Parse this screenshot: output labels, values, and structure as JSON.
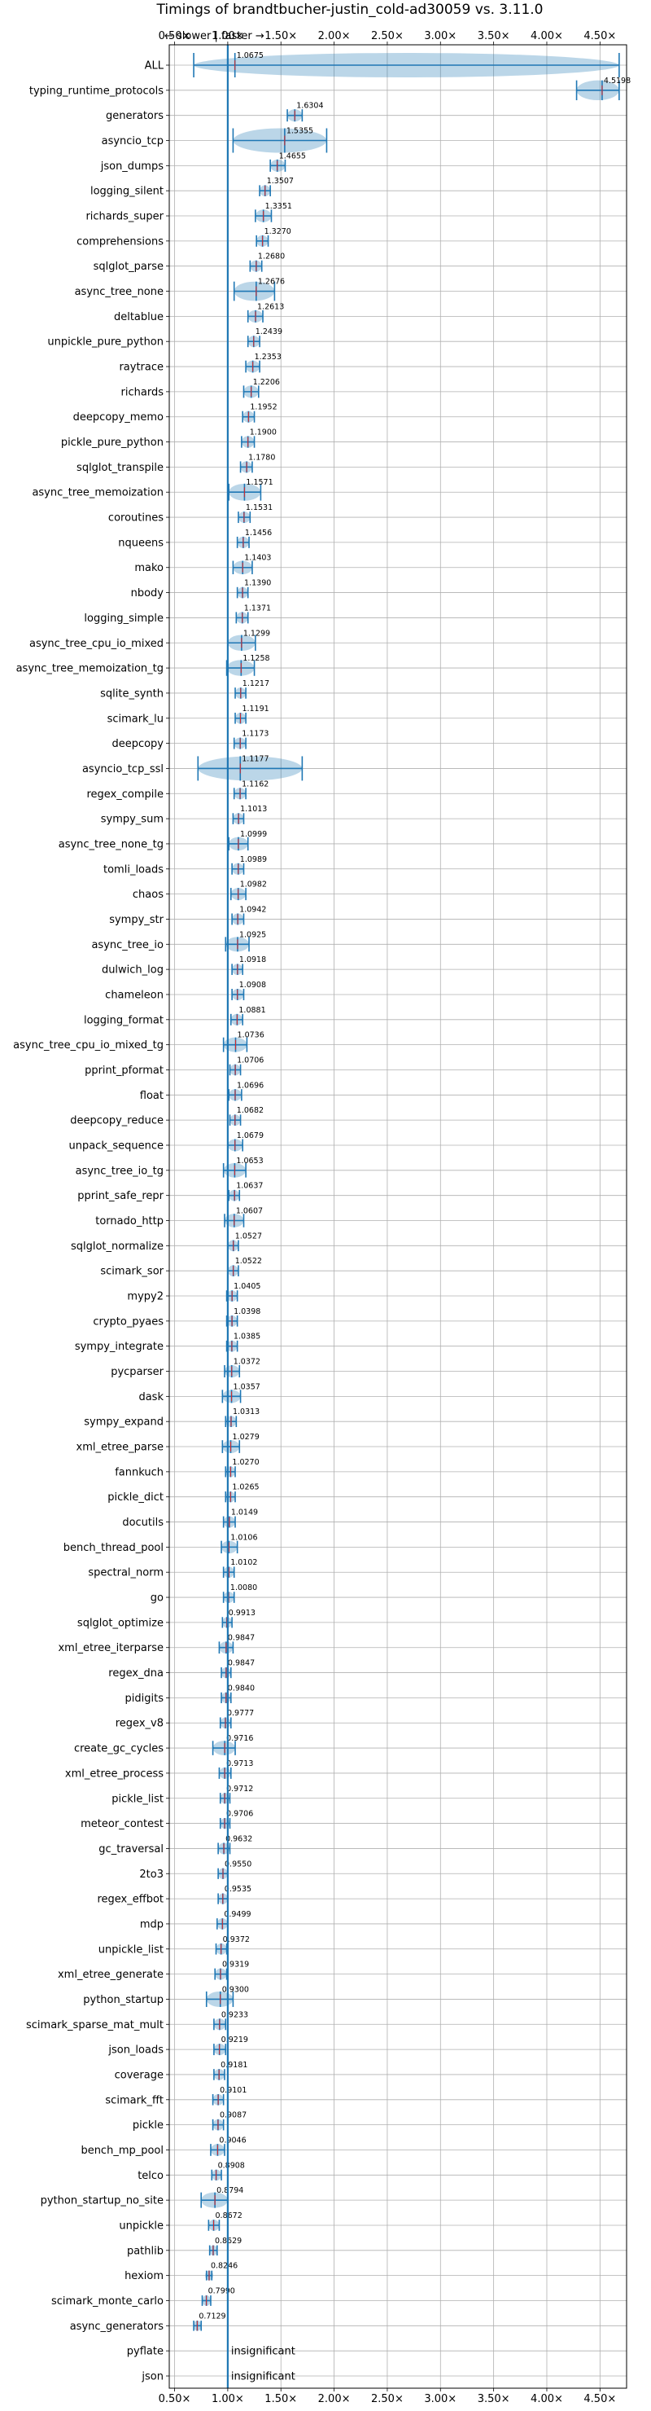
{
  "chart_data": {
    "type": "violin",
    "title": "Timings of brandtbucher-justin_cold-ad30059 vs. 3.11.0",
    "direction_note": "← slower | faster →",
    "xlim": [
      0.45,
      4.75
    ],
    "reference_line": 1.0,
    "x_ticks": [
      0.5,
      1.0,
      1.5,
      2.0,
      2.5,
      3.0,
      3.5,
      4.0,
      4.5
    ],
    "x_tick_labels": [
      "0.50×",
      "1.00×",
      "1.50×",
      "2.00×",
      "2.50×",
      "3.00×",
      "3.50×",
      "4.00×",
      "4.50×"
    ],
    "grid": true,
    "accent_color": "#1f77b4",
    "benchmarks": [
      {
        "name": "ALL",
        "value": 1.0675,
        "label": "1.0675",
        "low": 0.68,
        "high": 4.68
      },
      {
        "name": "typing_runtime_protocols",
        "value": 4.5198,
        "label": "4.5198",
        "low": 4.28,
        "high": 4.68
      },
      {
        "name": "generators",
        "value": 1.6304,
        "label": "1.6304",
        "low": 1.56,
        "high": 1.7
      },
      {
        "name": "asyncio_tcp",
        "value": 1.5355,
        "label": "1.5355",
        "low": 1.05,
        "high": 1.93
      },
      {
        "name": "json_dumps",
        "value": 1.4655,
        "label": "1.4655",
        "low": 1.4,
        "high": 1.54
      },
      {
        "name": "logging_silent",
        "value": 1.3507,
        "label": "1.3507",
        "low": 1.3,
        "high": 1.4
      },
      {
        "name": "richards_super",
        "value": 1.3351,
        "label": "1.3351",
        "low": 1.26,
        "high": 1.41
      },
      {
        "name": "comprehensions",
        "value": 1.327,
        "label": "1.3270",
        "low": 1.27,
        "high": 1.38
      },
      {
        "name": "sqlglot_parse",
        "value": 1.268,
        "label": "1.2680",
        "low": 1.21,
        "high": 1.32
      },
      {
        "name": "async_tree_none",
        "value": 1.2676,
        "label": "1.2676",
        "low": 1.06,
        "high": 1.44
      },
      {
        "name": "deltablue",
        "value": 1.2613,
        "label": "1.2613",
        "low": 1.19,
        "high": 1.33
      },
      {
        "name": "unpickle_pure_python",
        "value": 1.2439,
        "label": "1.2439",
        "low": 1.19,
        "high": 1.3
      },
      {
        "name": "raytrace",
        "value": 1.2353,
        "label": "1.2353",
        "low": 1.17,
        "high": 1.3
      },
      {
        "name": "richards",
        "value": 1.2206,
        "label": "1.2206",
        "low": 1.15,
        "high": 1.29
      },
      {
        "name": "deepcopy_memo",
        "value": 1.1952,
        "label": "1.1952",
        "low": 1.14,
        "high": 1.25
      },
      {
        "name": "pickle_pure_python",
        "value": 1.19,
        "label": "1.1900",
        "low": 1.13,
        "high": 1.25
      },
      {
        "name": "sqlglot_transpile",
        "value": 1.178,
        "label": "1.1780",
        "low": 1.12,
        "high": 1.23
      },
      {
        "name": "async_tree_memoization",
        "value": 1.1571,
        "label": "1.1571",
        "low": 1.01,
        "high": 1.31
      },
      {
        "name": "coroutines",
        "value": 1.1531,
        "label": "1.1531",
        "low": 1.1,
        "high": 1.21
      },
      {
        "name": "nqueens",
        "value": 1.1456,
        "label": "1.1456",
        "low": 1.09,
        "high": 1.2
      },
      {
        "name": "mako",
        "value": 1.1403,
        "label": "1.1403",
        "low": 1.05,
        "high": 1.23
      },
      {
        "name": "nbody",
        "value": 1.139,
        "label": "1.1390",
        "low": 1.09,
        "high": 1.19
      },
      {
        "name": "logging_simple",
        "value": 1.1371,
        "label": "1.1371",
        "low": 1.08,
        "high": 1.19
      },
      {
        "name": "async_tree_cpu_io_mixed",
        "value": 1.1299,
        "label": "1.1299",
        "low": 1.0,
        "high": 1.26
      },
      {
        "name": "async_tree_memoization_tg",
        "value": 1.1258,
        "label": "1.1258",
        "low": 0.99,
        "high": 1.25
      },
      {
        "name": "sqlite_synth",
        "value": 1.1217,
        "label": "1.1217",
        "low": 1.07,
        "high": 1.17
      },
      {
        "name": "scimark_lu",
        "value": 1.1191,
        "label": "1.1191",
        "low": 1.07,
        "high": 1.17
      },
      {
        "name": "deepcopy",
        "value": 1.1173,
        "label": "1.1173",
        "low": 1.06,
        "high": 1.17
      },
      {
        "name": "asyncio_tcp_ssl",
        "value": 1.1177,
        "label": "1.1177",
        "low": 0.72,
        "high": 1.7
      },
      {
        "name": "regex_compile",
        "value": 1.1162,
        "label": "1.1162",
        "low": 1.06,
        "high": 1.17
      },
      {
        "name": "sympy_sum",
        "value": 1.1013,
        "label": "1.1013",
        "low": 1.05,
        "high": 1.15
      },
      {
        "name": "async_tree_none_tg",
        "value": 1.0999,
        "label": "1.0999",
        "low": 1.01,
        "high": 1.19
      },
      {
        "name": "tomli_loads",
        "value": 1.0989,
        "label": "1.0989",
        "low": 1.04,
        "high": 1.15
      },
      {
        "name": "chaos",
        "value": 1.0982,
        "label": "1.0982",
        "low": 1.03,
        "high": 1.17
      },
      {
        "name": "sympy_str",
        "value": 1.0942,
        "label": "1.0942",
        "low": 1.04,
        "high": 1.15
      },
      {
        "name": "async_tree_io",
        "value": 1.0925,
        "label": "1.0925",
        "low": 0.98,
        "high": 1.2
      },
      {
        "name": "dulwich_log",
        "value": 1.0918,
        "label": "1.0918",
        "low": 1.04,
        "high": 1.14
      },
      {
        "name": "chameleon",
        "value": 1.0908,
        "label": "1.0908",
        "low": 1.04,
        "high": 1.15
      },
      {
        "name": "logging_format",
        "value": 1.0881,
        "label": "1.0881",
        "low": 1.03,
        "high": 1.14
      },
      {
        "name": "async_tree_cpu_io_mixed_tg",
        "value": 1.0736,
        "label": "1.0736",
        "low": 0.96,
        "high": 1.18
      },
      {
        "name": "pprint_pformat",
        "value": 1.0706,
        "label": "1.0706",
        "low": 1.02,
        "high": 1.12
      },
      {
        "name": "float",
        "value": 1.0696,
        "label": "1.0696",
        "low": 1.01,
        "high": 1.13
      },
      {
        "name": "deepcopy_reduce",
        "value": 1.0682,
        "label": "1.0682",
        "low": 1.02,
        "high": 1.12
      },
      {
        "name": "unpack_sequence",
        "value": 1.0679,
        "label": "1.0679",
        "low": 1.0,
        "high": 1.14
      },
      {
        "name": "async_tree_io_tg",
        "value": 1.0653,
        "label": "1.0653",
        "low": 0.96,
        "high": 1.17
      },
      {
        "name": "pprint_safe_repr",
        "value": 1.0637,
        "label": "1.0637",
        "low": 1.01,
        "high": 1.11
      },
      {
        "name": "tornado_http",
        "value": 1.0607,
        "label": "1.0607",
        "low": 0.97,
        "high": 1.15
      },
      {
        "name": "sqlglot_normalize",
        "value": 1.0527,
        "label": "1.0527",
        "low": 1.0,
        "high": 1.1
      },
      {
        "name": "scimark_sor",
        "value": 1.0522,
        "label": "1.0522",
        "low": 1.0,
        "high": 1.1
      },
      {
        "name": "mypy2",
        "value": 1.0405,
        "label": "1.0405",
        "low": 0.99,
        "high": 1.09
      },
      {
        "name": "crypto_pyaes",
        "value": 1.0398,
        "label": "1.0398",
        "low": 0.99,
        "high": 1.09
      },
      {
        "name": "sympy_integrate",
        "value": 1.0385,
        "label": "1.0385",
        "low": 0.99,
        "high": 1.09
      },
      {
        "name": "pycparser",
        "value": 1.0372,
        "label": "1.0372",
        "low": 0.97,
        "high": 1.11
      },
      {
        "name": "dask",
        "value": 1.0357,
        "label": "1.0357",
        "low": 0.95,
        "high": 1.12
      },
      {
        "name": "sympy_expand",
        "value": 1.0313,
        "label": "1.0313",
        "low": 0.98,
        "high": 1.08
      },
      {
        "name": "xml_etree_parse",
        "value": 1.0279,
        "label": "1.0279",
        "low": 0.95,
        "high": 1.11
      },
      {
        "name": "fannkuch",
        "value": 1.027,
        "label": "1.0270",
        "low": 0.98,
        "high": 1.07
      },
      {
        "name": "pickle_dict",
        "value": 1.0265,
        "label": "1.0265",
        "low": 0.98,
        "high": 1.07
      },
      {
        "name": "docutils",
        "value": 1.0149,
        "label": "1.0149",
        "low": 0.96,
        "high": 1.07
      },
      {
        "name": "bench_thread_pool",
        "value": 1.0106,
        "label": "1.0106",
        "low": 0.94,
        "high": 1.09
      },
      {
        "name": "spectral_norm",
        "value": 1.0102,
        "label": "1.0102",
        "low": 0.96,
        "high": 1.06
      },
      {
        "name": "go",
        "value": 1.008,
        "label": "1.0080",
        "low": 0.96,
        "high": 1.06
      },
      {
        "name": "sqlglot_optimize",
        "value": 0.9913,
        "label": "0.9913",
        "low": 0.95,
        "high": 1.04
      },
      {
        "name": "xml_etree_iterparse",
        "value": 0.9847,
        "label": "0.9847",
        "low": 0.92,
        "high": 1.05
      },
      {
        "name": "regex_dna",
        "value": 0.9847,
        "label": "0.9847",
        "low": 0.94,
        "high": 1.03
      },
      {
        "name": "pidigits",
        "value": 0.984,
        "label": "0.9840",
        "low": 0.94,
        "high": 1.03
      },
      {
        "name": "regex_v8",
        "value": 0.9777,
        "label": "0.9777",
        "low": 0.93,
        "high": 1.03
      },
      {
        "name": "create_gc_cycles",
        "value": 0.9716,
        "label": "0.9716",
        "low": 0.86,
        "high": 1.07
      },
      {
        "name": "xml_etree_process",
        "value": 0.9713,
        "label": "0.9713",
        "low": 0.92,
        "high": 1.03
      },
      {
        "name": "pickle_list",
        "value": 0.9712,
        "label": "0.9712",
        "low": 0.93,
        "high": 1.02
      },
      {
        "name": "meteor_contest",
        "value": 0.9706,
        "label": "0.9706",
        "low": 0.93,
        "high": 1.02
      },
      {
        "name": "gc_traversal",
        "value": 0.9632,
        "label": "0.9632",
        "low": 0.91,
        "high": 1.02
      },
      {
        "name": "2to3",
        "value": 0.955,
        "label": "0.9550",
        "low": 0.91,
        "high": 1.0
      },
      {
        "name": "regex_effbot",
        "value": 0.9535,
        "label": "0.9535",
        "low": 0.91,
        "high": 1.0
      },
      {
        "name": "mdp",
        "value": 0.9499,
        "label": "0.9499",
        "low": 0.9,
        "high": 1.0
      },
      {
        "name": "unpickle_list",
        "value": 0.9372,
        "label": "0.9372",
        "low": 0.89,
        "high": 0.99
      },
      {
        "name": "xml_etree_generate",
        "value": 0.9319,
        "label": "0.9319",
        "low": 0.88,
        "high": 0.99
      },
      {
        "name": "python_startup",
        "value": 0.93,
        "label": "0.9300",
        "low": 0.8,
        "high": 1.05
      },
      {
        "name": "scimark_sparse_mat_mult",
        "value": 0.9233,
        "label": "0.9233",
        "low": 0.87,
        "high": 0.98
      },
      {
        "name": "json_loads",
        "value": 0.9219,
        "label": "0.9219",
        "low": 0.87,
        "high": 0.98
      },
      {
        "name": "coverage",
        "value": 0.9181,
        "label": "0.9181",
        "low": 0.87,
        "high": 0.97
      },
      {
        "name": "scimark_fft",
        "value": 0.9101,
        "label": "0.9101",
        "low": 0.86,
        "high": 0.96
      },
      {
        "name": "pickle",
        "value": 0.9087,
        "label": "0.9087",
        "low": 0.86,
        "high": 0.96
      },
      {
        "name": "bench_mp_pool",
        "value": 0.9046,
        "label": "0.9046",
        "low": 0.84,
        "high": 0.97
      },
      {
        "name": "telco",
        "value": 0.8908,
        "label": "0.8908",
        "low": 0.85,
        "high": 0.94
      },
      {
        "name": "python_startup_no_site",
        "value": 0.8794,
        "label": "0.8794",
        "low": 0.75,
        "high": 1.0
      },
      {
        "name": "unpickle",
        "value": 0.8672,
        "label": "0.8672",
        "low": 0.82,
        "high": 0.92
      },
      {
        "name": "pathlib",
        "value": 0.8629,
        "label": "0.8629",
        "low": 0.83,
        "high": 0.9
      },
      {
        "name": "hexiom",
        "value": 0.8246,
        "label": "0.8246",
        "low": 0.8,
        "high": 0.85
      },
      {
        "name": "scimark_monte_carlo",
        "value": 0.799,
        "label": "0.7990",
        "low": 0.76,
        "high": 0.84
      },
      {
        "name": "async_generators",
        "value": 0.7129,
        "label": "0.7129",
        "low": 0.68,
        "high": 0.75
      },
      {
        "name": "pyflate",
        "value": null,
        "label": "insignificant",
        "low": null,
        "high": null
      },
      {
        "name": "json",
        "value": null,
        "label": "insignificant",
        "low": null,
        "high": null
      }
    ]
  }
}
